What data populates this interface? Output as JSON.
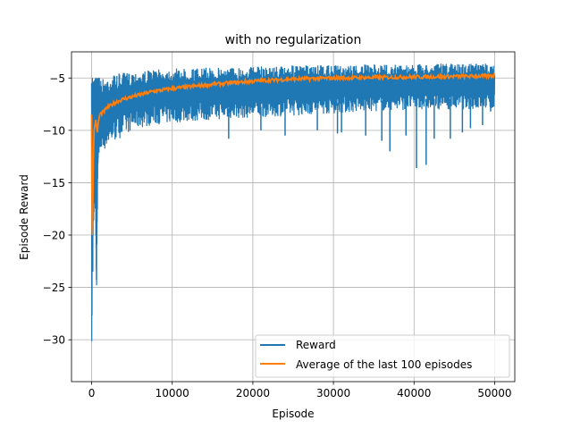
{
  "chart_data": {
    "type": "line",
    "title": "with no regularization",
    "xlabel": "Episode",
    "ylabel": "Episode Reward",
    "xlim": [
      -2500,
      52500
    ],
    "ylim": [
      -34,
      -2.5
    ],
    "xticks": [
      0,
      10000,
      20000,
      30000,
      40000,
      50000
    ],
    "xtick_labels": [
      "0",
      "10000",
      "20000",
      "30000",
      "40000",
      "50000"
    ],
    "yticks": [
      -30,
      -25,
      -20,
      -15,
      -10,
      -5
    ],
    "ytick_labels": [
      "−30",
      "−25",
      "−20",
      "−15",
      "−10",
      "−5"
    ],
    "grid": true,
    "legend_position": "lower-right",
    "series": [
      {
        "name": "Reward",
        "color": "#1f77b4",
        "x": [
          0,
          50,
          100,
          150,
          200,
          300,
          400,
          500,
          600,
          700,
          800,
          1000,
          1500,
          2000,
          3000,
          4000,
          5000,
          7500,
          10000,
          15000,
          20000,
          25000,
          30000,
          35000,
          40000,
          45000,
          50000
        ],
        "upper": [
          -5.5,
          -6,
          -5,
          -5.5,
          -5.5,
          -5.3,
          -5.2,
          -5,
          -5,
          -5.2,
          -5,
          -5,
          -5,
          -4.8,
          -4.6,
          -4.5,
          -4.4,
          -4.2,
          -4.1,
          -4.0,
          -3.9,
          -3.8,
          -3.8,
          -3.7,
          -3.7,
          -3.6,
          -3.6
        ],
        "lower": [
          -32.2,
          -28,
          -20,
          -24,
          -20,
          -18,
          -16,
          -19,
          -26,
          -19,
          -13,
          -12.5,
          -12,
          -11.5,
          -11,
          -10.5,
          -10,
          -9.5,
          -9.3,
          -9,
          -8.8,
          -8.6,
          -8.4,
          -8.2,
          -8,
          -8,
          -8
        ],
        "spikes": [
          [
            17000,
            -10.8
          ],
          [
            21000,
            -10
          ],
          [
            24000,
            -10.5
          ],
          [
            28000,
            -10
          ],
          [
            30500,
            -10.3
          ],
          [
            31000,
            -10.2
          ],
          [
            34000,
            -10.5
          ],
          [
            36000,
            -11
          ],
          [
            37000,
            -12
          ],
          [
            39000,
            -10.5
          ],
          [
            40300,
            -13.6
          ],
          [
            41500,
            -13.3
          ],
          [
            42500,
            -10.8
          ],
          [
            44500,
            -10.8
          ],
          [
            46000,
            -10.2
          ],
          [
            47000,
            -9.8
          ],
          [
            48500,
            -9.5
          ],
          [
            49500,
            -8.2
          ]
        ]
      },
      {
        "name": "Average of the last 100 episodes",
        "color": "#ff7f0e",
        "x": [
          0,
          20,
          60,
          100,
          150,
          200,
          250,
          300,
          400,
          500,
          600,
          700,
          800,
          1000,
          1500,
          2000,
          3000,
          4000,
          5000,
          7500,
          10000,
          15000,
          20000,
          25000,
          30000,
          35000,
          40000,
          45000,
          50000
        ],
        "y": [
          -8.5,
          -12,
          -19,
          -20,
          -17,
          -14,
          -11.5,
          -10,
          -9.5,
          -9,
          -9.6,
          -10.2,
          -9.3,
          -8.5,
          -8.2,
          -7.8,
          -7.3,
          -7.0,
          -6.8,
          -6.3,
          -6.0,
          -5.6,
          -5.3,
          -5.1,
          -5.0,
          -4.95,
          -4.9,
          -4.85,
          -4.8
        ]
      }
    ]
  }
}
